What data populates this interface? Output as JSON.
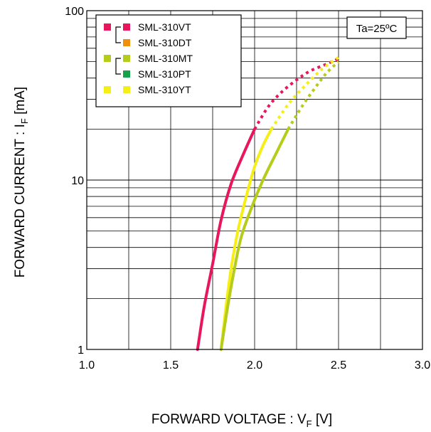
{
  "chart_data": {
    "type": "line",
    "xlabel": "FORWARD VOLTAGE : VF [V]",
    "ylabel": "FORWARD CURRENT : IF [mA]",
    "xlabel_parts": {
      "main": "FORWARD VOLTAGE : V",
      "sub": "F",
      "unit": " [V]"
    },
    "ylabel_parts": {
      "main": "FORWARD CURRENT : I",
      "sub": "F",
      "unit": " [mA]"
    },
    "xlim": [
      1.0,
      3.0
    ],
    "ylim": [
      1,
      100
    ],
    "y_scale": "log",
    "x_ticks": [
      "1.0",
      "1.5",
      "2.0",
      "2.5",
      "3.0"
    ],
    "y_ticks": [
      "1",
      "10",
      "100"
    ],
    "grid": true,
    "condition": "Ta=25ºC",
    "legend_position": "top-left",
    "legend": [
      {
        "label": "SML-310VT",
        "color": "#e8175d",
        "group": "a"
      },
      {
        "label": "SML-310DT",
        "color": "#f0900a",
        "group": "a"
      },
      {
        "label": "SML-310MT",
        "color": "#b6cc1a",
        "group": "b"
      },
      {
        "label": "SML-310PT",
        "color": "#14a24a",
        "group": "b"
      },
      {
        "label": "SML-310YT",
        "color": "#f6ee17",
        "group": "c"
      }
    ],
    "series": [
      {
        "color": "#e8175d",
        "solid": [
          [
            1.66,
            1
          ],
          [
            1.7,
            1.8
          ],
          [
            1.75,
            3.2
          ],
          [
            1.8,
            5.8
          ],
          [
            1.86,
            9.5
          ],
          [
            1.93,
            14
          ],
          [
            2.0,
            20
          ]
        ],
        "dotted": [
          [
            2.0,
            20
          ],
          [
            2.08,
            27
          ],
          [
            2.16,
            33
          ],
          [
            2.25,
            39
          ],
          [
            2.33,
            44
          ],
          [
            2.42,
            48
          ],
          [
            2.5,
            52
          ]
        ]
      },
      {
        "color": "#f6ee17",
        "solid": [
          [
            1.8,
            1
          ],
          [
            1.83,
            1.8
          ],
          [
            1.86,
            3.0
          ],
          [
            1.9,
            5.0
          ],
          [
            1.95,
            8
          ],
          [
            2.0,
            12
          ],
          [
            2.05,
            16
          ],
          [
            2.1,
            20
          ]
        ],
        "dotted": [
          [
            2.1,
            20
          ],
          [
            2.2,
            28
          ],
          [
            2.3,
            36
          ],
          [
            2.4,
            45
          ],
          [
            2.5,
            53
          ]
        ]
      },
      {
        "color": "#b6cc1a",
        "solid": [
          [
            1.8,
            1
          ],
          [
            1.84,
            1.8
          ],
          [
            1.88,
            3.0
          ],
          [
            1.92,
            4.6
          ],
          [
            1.98,
            6.8
          ],
          [
            2.05,
            10
          ],
          [
            2.13,
            14.5
          ],
          [
            2.2,
            20
          ]
        ],
        "dotted": [
          [
            2.2,
            20
          ],
          [
            2.28,
            27
          ],
          [
            2.36,
            35
          ],
          [
            2.43,
            43
          ],
          [
            2.5,
            50
          ]
        ]
      }
    ]
  }
}
